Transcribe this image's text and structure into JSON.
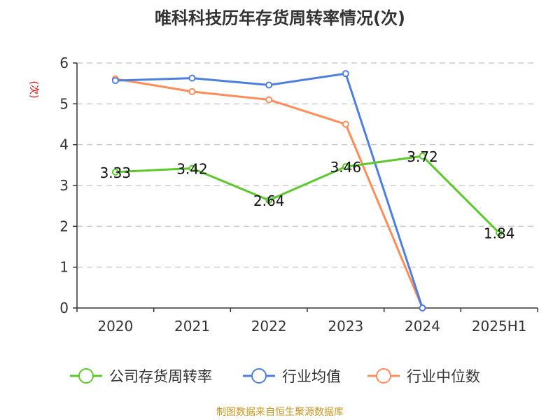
{
  "chart_data": {
    "type": "line",
    "title": "唯科科技历年存货周转率情况(次)",
    "ylabel": "(次)",
    "categories": [
      "2020",
      "2021",
      "2022",
      "2023",
      "2024",
      "2025H1"
    ],
    "ylim": [
      0,
      6
    ],
    "yticks": [
      "0",
      "1",
      "2",
      "3",
      "4",
      "5",
      "6"
    ],
    "grid": true,
    "legend_position": "bottom",
    "series": [
      {
        "name": "公司存货周转率",
        "color": "#5cc92a",
        "values": [
          3.33,
          3.42,
          2.64,
          3.46,
          3.72,
          1.84
        ],
        "labels": [
          "3.33",
          "3.42",
          "2.64",
          "3.46",
          "3.72",
          "1.84"
        ]
      },
      {
        "name": "行业均值",
        "color": "#4b7fe0",
        "values": [
          5.57,
          5.63,
          5.46,
          5.74,
          0,
          null
        ]
      },
      {
        "name": "行业中位数",
        "color": "#ff8c56",
        "values": [
          5.61,
          5.3,
          5.1,
          4.5,
          0,
          null
        ]
      }
    ]
  },
  "source": "制图数据来自恒生聚源数据库"
}
